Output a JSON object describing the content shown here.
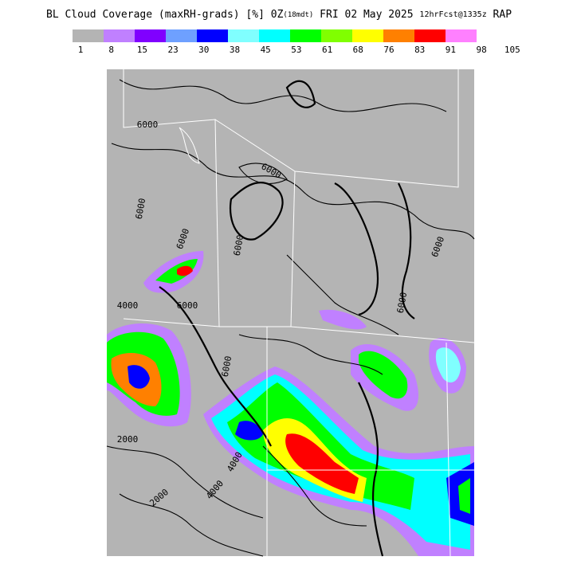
{
  "header": {
    "title_parts": [
      "BL Cloud Coverage (maxRH-grads) [%] 0Z",
      "(18mdt)",
      " FRI 02 May 2025 ",
      "12hrFcst@1335z",
      " RAP"
    ]
  },
  "legend": {
    "colors": [
      "#b4b4b4",
      "#c080ff",
      "#8000ff",
      "#6ea0ff",
      "#0000ff",
      "#80ffff",
      "#00ffff",
      "#00ff00",
      "#80ff00",
      "#ffff00",
      "#ff8000",
      "#ff0000",
      "#ff80ff"
    ],
    "labels": [
      1,
      8,
      15,
      23,
      30,
      38,
      45,
      53,
      61,
      68,
      76,
      83,
      91,
      98,
      105
    ]
  },
  "map": {
    "contour_labels": [
      "6000",
      "6000",
      "6000",
      "6000",
      "6000",
      "4000",
      "6000",
      "4000",
      "2000",
      "2000",
      "4000",
      "6000",
      "6000",
      "6000"
    ]
  }
}
